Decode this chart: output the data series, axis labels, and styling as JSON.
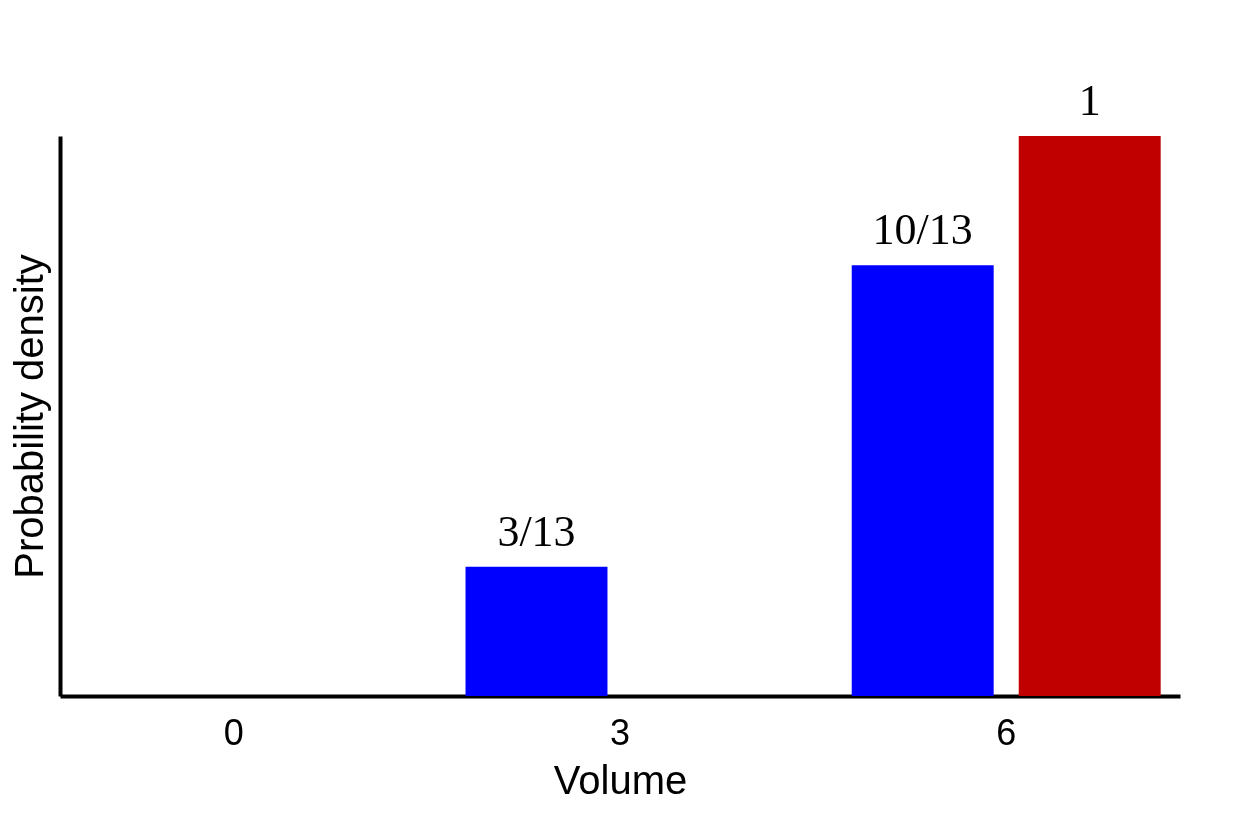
{
  "chart_data": {
    "type": "bar",
    "xlabel": "Volume",
    "ylabel": "Probability density",
    "tick_labels": "x",
    "categories": [
      "0",
      "3",
      "6"
    ],
    "series": [
      {
        "color": "#0000ff",
        "values": [
          null,
          0.2308,
          0.7692
        ],
        "value_labels": [
          null,
          "3/13",
          "10/13"
        ]
      },
      {
        "color": "#c00000",
        "values": [
          null,
          null,
          1
        ],
        "value_labels": [
          null,
          null,
          "1"
        ]
      }
    ]
  }
}
